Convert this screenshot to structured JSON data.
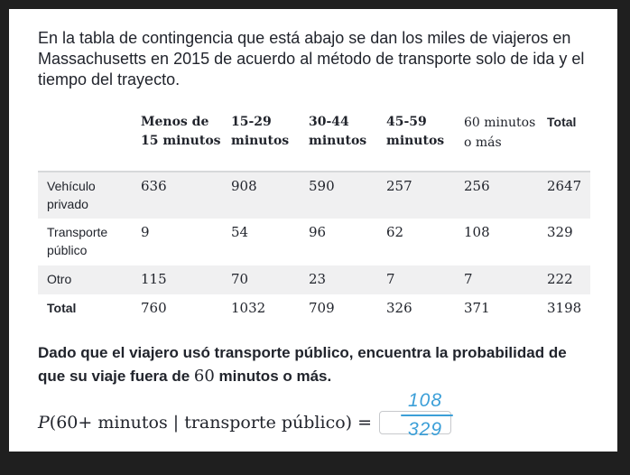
{
  "intro": "En la tabla de contingencia que está abajo se dan los miles de viajeros en Massachusetts en 2015 de acuerdo al método de transporte solo de ida y el tiempo del trayecto.",
  "table": {
    "headers": [
      "",
      "Menos de 15 minutos",
      "15-29 minutos",
      "30-44 minutos",
      "45-59 minutos",
      "60 minutos o más",
      "Total"
    ],
    "rows": [
      {
        "label": "Vehículo privado",
        "values": [
          "636",
          "908",
          "590",
          "257",
          "256",
          "2647"
        ]
      },
      {
        "label": "Transporte público",
        "values": [
          "9",
          "54",
          "96",
          "62",
          "108",
          "329"
        ]
      },
      {
        "label": "Otro",
        "values": [
          "115",
          "70",
          "23",
          "7",
          "7",
          "222"
        ]
      },
      {
        "label": "Total",
        "values": [
          "760",
          "1032",
          "709",
          "326",
          "371",
          "3198"
        ]
      }
    ]
  },
  "question": {
    "before": "Dado que el viajero usó transporte público, encuentra la probabilidad de que su viaje fuera de ",
    "math": "60",
    "after": " minutos o más."
  },
  "equation": {
    "p": "P",
    "body": "(60+ minutos | transporte público) ="
  },
  "handwritten_answer": {
    "numerator": "108",
    "denominator": "329",
    "color": "#3b9fd8"
  }
}
